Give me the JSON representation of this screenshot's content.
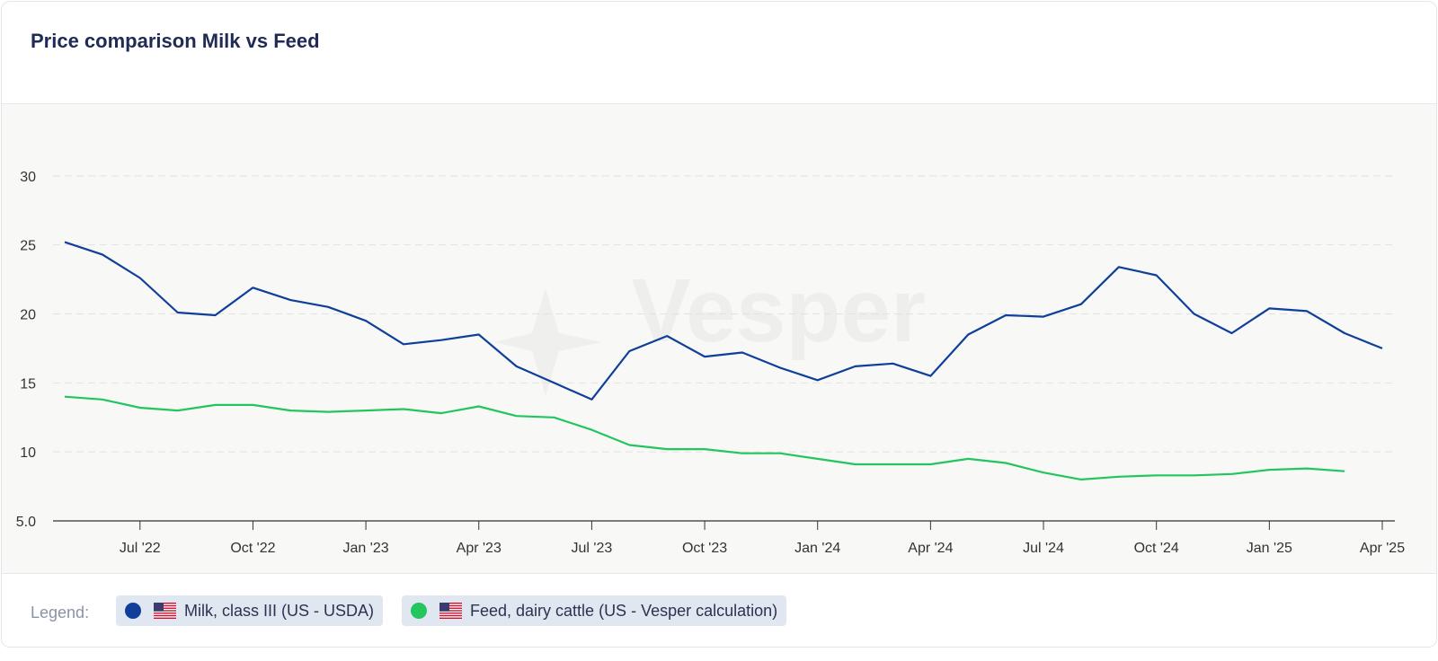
{
  "chart_data": {
    "type": "line",
    "title": "Price comparison Milk vs Feed",
    "watermark": "Vesper",
    "categories": [
      null,
      null,
      "Jul '22",
      null,
      null,
      "Oct '22",
      null,
      null,
      "Jan '23",
      null,
      null,
      "Apr '23",
      null,
      null,
      "Jul '23",
      null,
      null,
      "Oct '23",
      null,
      null,
      "Jan '24",
      null,
      null,
      "Apr '24",
      null,
      null,
      "Jul '24",
      null,
      null,
      "Oct '24",
      null,
      null,
      "Jan '25",
      null,
      null,
      "Apr '25"
    ],
    "series": [
      {
        "name": "Milk, class III (US - USDA)",
        "color": "#0f3f9a",
        "values": [
          25.2,
          24.3,
          22.6,
          20.1,
          19.9,
          21.9,
          21.0,
          20.5,
          19.5,
          17.8,
          18.1,
          18.5,
          16.2,
          15.0,
          13.8,
          17.3,
          18.4,
          16.9,
          17.2,
          16.1,
          15.2,
          16.2,
          16.4,
          15.5,
          18.5,
          19.9,
          19.8,
          20.7,
          23.4,
          22.8,
          20.0,
          18.6,
          20.4,
          20.2,
          18.6,
          17.5
        ]
      },
      {
        "name": "Feed, dairy cattle (US - Vesper calculation)",
        "color": "#22c55e",
        "values": [
          14.0,
          13.8,
          13.2,
          13.0,
          13.4,
          13.4,
          13.0,
          12.9,
          13.0,
          13.1,
          12.8,
          13.3,
          12.6,
          12.5,
          11.6,
          10.5,
          10.2,
          10.2,
          9.9,
          9.9,
          9.5,
          9.1,
          9.1,
          9.1,
          9.5,
          9.2,
          8.5,
          8.0,
          8.2,
          8.3,
          8.3,
          8.4,
          8.7,
          8.8,
          8.6,
          null
        ]
      }
    ],
    "ylim": [
      5,
      35
    ],
    "yticks": [
      {
        "value": 5,
        "label": "5.0"
      },
      10,
      15,
      20,
      25,
      30
    ],
    "grid": true,
    "legend_label": "Legend:"
  }
}
